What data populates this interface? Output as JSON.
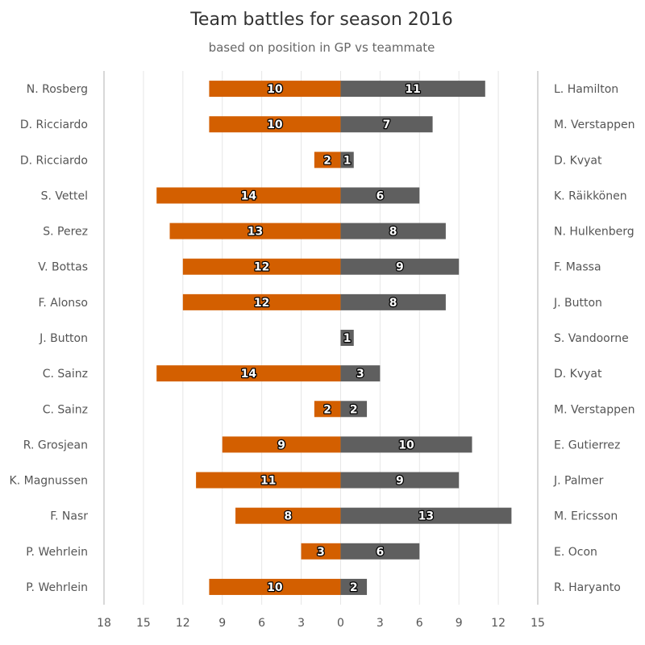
{
  "chart_data": {
    "type": "bar",
    "title": "Team battles for season 2016",
    "subtitle": "based on position in GP vs teammate",
    "left_categories": [
      "N. Rosberg",
      "D. Ricciardo",
      "D. Ricciardo",
      "S. Vettel",
      "S. Perez",
      "V. Bottas",
      "F. Alonso",
      "J. Button",
      "C. Sainz",
      "C. Sainz",
      "R. Grosjean",
      "K. Magnussen",
      "F. Nasr",
      "P. Wehrlein",
      "P. Wehrlein"
    ],
    "right_categories": [
      "L. Hamilton",
      "M. Verstappen",
      "D. Kvyat",
      "K. Räikkönen",
      "N. Hulkenberg",
      "F. Massa",
      "J. Button",
      "S. Vandoorne",
      "D. Kvyat",
      "M. Verstappen",
      "E. Gutierrez",
      "J. Palmer",
      "M. Ericsson",
      "E. Ocon",
      "R. Haryanto"
    ],
    "series": [
      {
        "values": [
          10,
          10,
          2,
          14,
          13,
          12,
          12,
          0,
          14,
          2,
          9,
          11,
          8,
          3,
          10
        ]
      },
      {
        "values": [
          11,
          7,
          1,
          6,
          8,
          9,
          8,
          1,
          3,
          2,
          10,
          9,
          13,
          6,
          2
        ]
      }
    ],
    "x_ticks": [
      "18",
      "15",
      "12",
      "9",
      "6",
      "3",
      "0",
      "3",
      "6",
      "9",
      "12",
      "15"
    ],
    "xlim": [
      -18,
      15
    ],
    "grid": true,
    "colors": {
      "left": "#d35f00",
      "right": "#5f5f5f",
      "grid": "#e6e6e6",
      "axis": "#cccccc"
    }
  }
}
